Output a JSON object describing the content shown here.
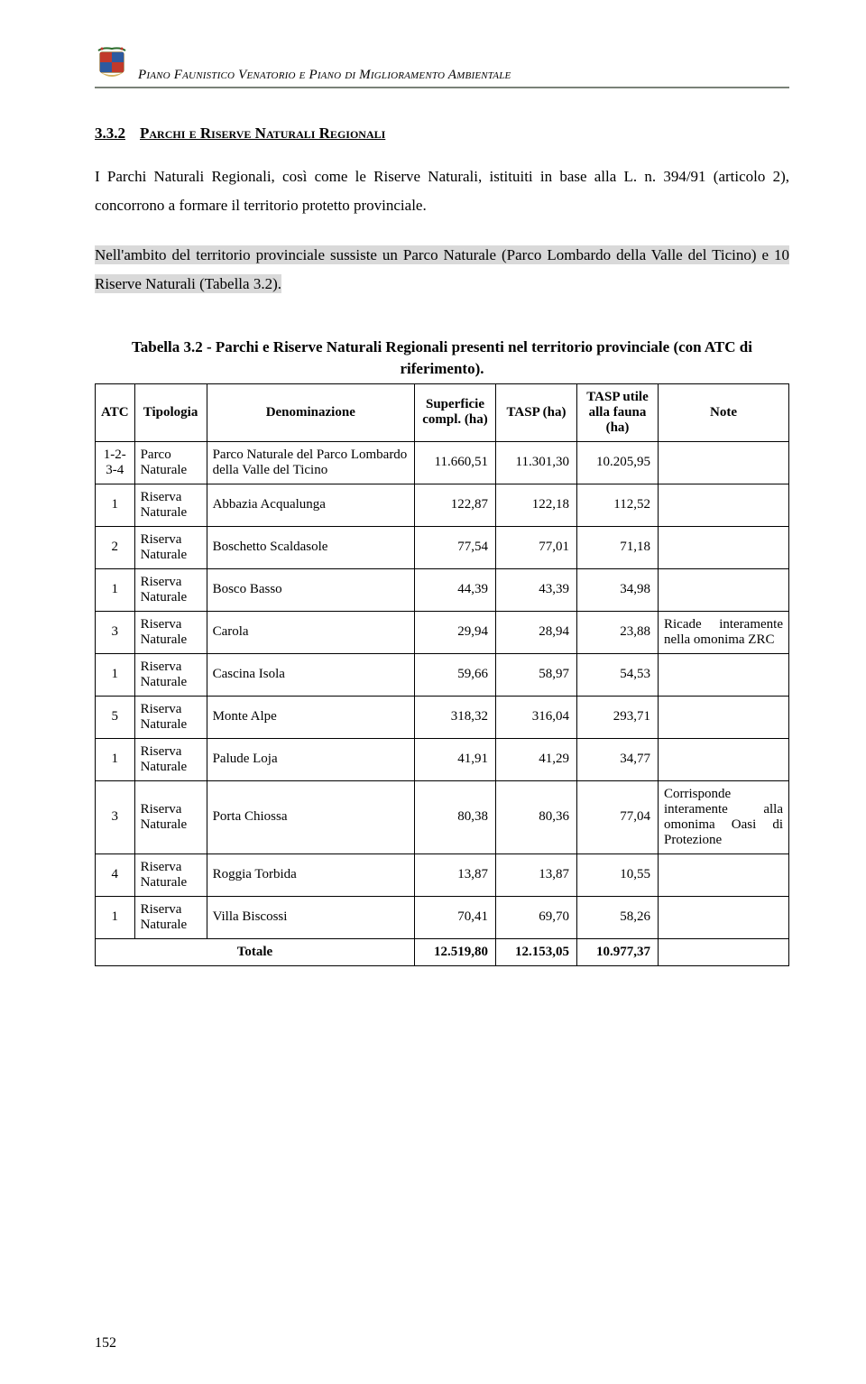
{
  "header": {
    "title": "Piano Faunistico Venatorio e Piano di Miglioramento Ambientale"
  },
  "section": {
    "number": "3.3.2",
    "title": "Parchi e Riserve Naturali Regionali"
  },
  "para1": "I Parchi Naturali Regionali, così come le Riserve Naturali, istituiti in base alla L. n. 394/91 (articolo 2), concorrono a formare il territorio protetto provinciale.",
  "para2": "Nell'ambito del territorio provinciale sussiste un Parco Naturale (Parco Lombardo della Valle del Ticino) e 10 Riserve Naturali (Tabella 3.2).",
  "table": {
    "caption": "Tabella 3.2 - Parchi e Riserve Naturali Regionali presenti nel territorio provinciale (con ATC di riferimento).",
    "columns": [
      "ATC",
      "Tipologia",
      "Denominazione",
      "Superficie compl. (ha)",
      "TASP (ha)",
      "TASP utile alla fauna (ha)",
      "Note"
    ],
    "rows": [
      {
        "atc": "1-2-3-4",
        "tip": "Parco Naturale",
        "den": "Parco Naturale del Parco Lombardo della Valle del Ticino",
        "sup": "11.660,51",
        "tasp": "11.301,30",
        "util": "10.205,95",
        "note": ""
      },
      {
        "atc": "1",
        "tip": "Riserva Naturale",
        "den": "Abbazia Acqualunga",
        "sup": "122,87",
        "tasp": "122,18",
        "util": "112,52",
        "note": ""
      },
      {
        "atc": "2",
        "tip": "Riserva Naturale",
        "den": "Boschetto Scaldasole",
        "sup": "77,54",
        "tasp": "77,01",
        "util": "71,18",
        "note": ""
      },
      {
        "atc": "1",
        "tip": "Riserva Naturale",
        "den": "Bosco Basso",
        "sup": "44,39",
        "tasp": "43,39",
        "util": "34,98",
        "note": ""
      },
      {
        "atc": "3",
        "tip": "Riserva Naturale",
        "den": "Carola",
        "sup": "29,94",
        "tasp": "28,94",
        "util": "23,88",
        "note": "Ricade interamente nella omonima ZRC"
      },
      {
        "atc": "1",
        "tip": "Riserva Naturale",
        "den": "Cascina Isola",
        "sup": "59,66",
        "tasp": "58,97",
        "util": "54,53",
        "note": ""
      },
      {
        "atc": "5",
        "tip": "Riserva Naturale",
        "den": "Monte Alpe",
        "sup": "318,32",
        "tasp": "316,04",
        "util": "293,71",
        "note": ""
      },
      {
        "atc": "1",
        "tip": "Riserva Naturale",
        "den": "Palude Loja",
        "sup": "41,91",
        "tasp": "41,29",
        "util": "34,77",
        "note": ""
      },
      {
        "atc": "3",
        "tip": "Riserva Naturale",
        "den": "Porta Chiossa",
        "sup": "80,38",
        "tasp": "80,36",
        "util": "77,04",
        "note": "Corrisponde interamente alla omonima Oasi di Protezione"
      },
      {
        "atc": "4",
        "tip": "Riserva Naturale",
        "den": "Roggia Torbida",
        "sup": "13,87",
        "tasp": "13,87",
        "util": "10,55",
        "note": ""
      },
      {
        "atc": "1",
        "tip": "Riserva Naturale",
        "den": "Villa Biscossi",
        "sup": "70,41",
        "tasp": "69,70",
        "util": "58,26",
        "note": ""
      }
    ],
    "total": {
      "label": "Totale",
      "sup": "12.519,80",
      "tasp": "12.153,05",
      "util": "10.977,37"
    }
  },
  "pagenum": "152"
}
